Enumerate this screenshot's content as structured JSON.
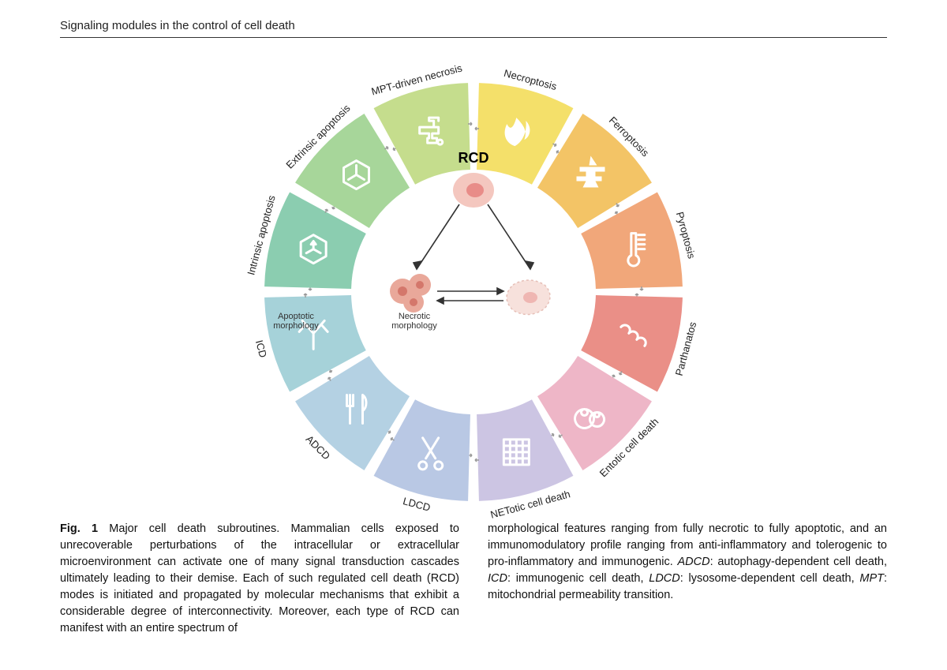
{
  "header": {
    "title": "Signaling modules in the control of cell death"
  },
  "figure": {
    "diameter": 560,
    "outer_radius": 265,
    "inner_radius": 155,
    "center_title": "RCD",
    "morph_left": "Apoptotic\nmorphology",
    "morph_right": "Necrotic\nmorphology",
    "segments": [
      {
        "label": "Necroptosis",
        "color": "#f4e06a",
        "icon": "flame"
      },
      {
        "label": "Ferroptosis",
        "color": "#f3c466",
        "icon": "anvil"
      },
      {
        "label": "Pyroptosis",
        "color": "#f1a77a",
        "icon": "thermometer"
      },
      {
        "label": "Parthanatos",
        "color": "#ea8f87",
        "icon": "chain"
      },
      {
        "label": "Entotic cell death",
        "color": "#eeb6c7",
        "icon": "cellpair"
      },
      {
        "label": "NETotic cell death",
        "color": "#ccc5e3",
        "icon": "mesh"
      },
      {
        "label": "LDCD",
        "color": "#b9c8e4",
        "icon": "scissors"
      },
      {
        "label": "ADCD",
        "color": "#b4d1e3",
        "icon": "cutlery"
      },
      {
        "label": "ICD",
        "color": "#a6d2d9",
        "icon": "antibody"
      },
      {
        "label": "Intrinsic apoptosis",
        "color": "#8bcdb0",
        "icon": "hex-in"
      },
      {
        "label": "Extrinsic apoptosis",
        "color": "#a7d69a",
        "icon": "hex-out"
      },
      {
        "label": "MPT-driven necrosis",
        "color": "#c5dd8d",
        "icon": "faucet"
      }
    ],
    "icon_color": "#ffffff",
    "arrow_color": "#999999",
    "center_cells": {
      "rcd_fill": "#f4c7bf",
      "rcd_core": "#e88c88",
      "apop_fill": "#e9a89a",
      "apop_core": "#d4776b",
      "necr_fill": "#f7e1dc",
      "necr_stroke": "#e6bfb7"
    }
  },
  "caption": {
    "label": "Fig. 1",
    "col1": "Major cell death subroutines. Mammalian cells exposed to unrecoverable perturbations of the intracellular or extracellular microenvironment can activate one of many signal transduction cascades ultimately leading to their demise. Each of such regulated cell death (RCD) modes is initiated and propagated by molecular mechanisms that exhibit a considerable degree of interconnectivity. Moreover, each type of RCD can manifest with an entire spectrum of",
    "col2_a": "morphological features ranging from fully necrotic to fully apoptotic, and an immunomodulatory profile ranging from anti-inflammatory and tolerogenic to pro-inflammatory and immunogenic. ",
    "abbr1_k": "ADCD",
    "abbr1_v": ": autophagy-dependent cell death, ",
    "abbr2_k": "ICD",
    "abbr2_v": ": immunogenic cell death, ",
    "abbr3_k": "LDCD",
    "abbr3_v": ": lysosome-dependent cell death, ",
    "abbr4_k": "MPT",
    "abbr4_v": ": mitochondrial permeability transition."
  }
}
